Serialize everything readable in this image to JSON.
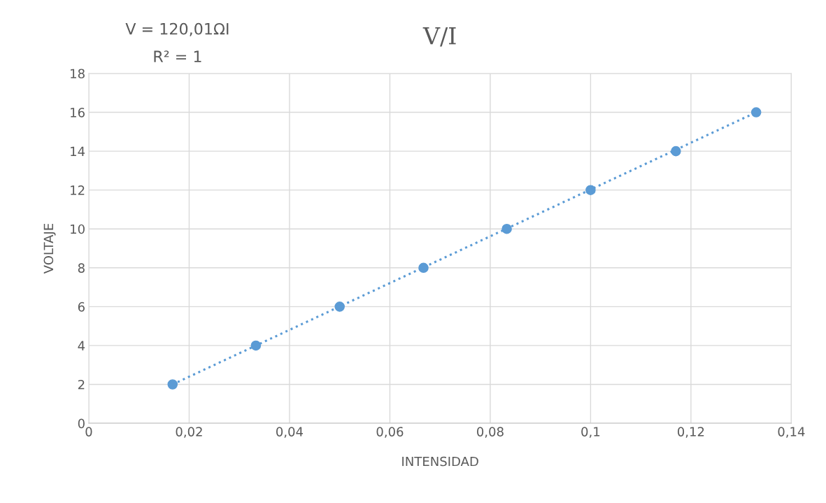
{
  "chart_data": {
    "type": "scatter",
    "title": "V/I",
    "xlabel": "INTENSIDAD",
    "ylabel": "VOLTAJE",
    "annotations": [
      "V = 120,01ΩI",
      "R² = 1"
    ],
    "series": [
      {
        "type": "scatter",
        "color": "#5b9bd5",
        "marker": "circle",
        "x": [
          0.0167,
          0.0333,
          0.05,
          0.0667,
          0.0833,
          0.1,
          0.117,
          0.133
        ],
        "values": [
          2,
          4,
          6,
          8,
          10,
          12,
          14,
          16
        ]
      },
      {
        "type": "line",
        "color": "#5b9bd5",
        "line_style": "dotted",
        "marker": "none",
        "x": [
          0.0167,
          0.133
        ],
        "values": [
          2,
          16
        ]
      }
    ],
    "xlim": [
      0,
      0.14
    ],
    "xticks": [
      0,
      {
        "value": 0.02,
        "label": "0,02"
      },
      {
        "value": 0.04,
        "label": "0,04"
      },
      {
        "value": 0.06,
        "label": "0,06"
      },
      {
        "value": 0.08,
        "label": "0,08"
      },
      {
        "value": 0.1,
        "label": "0,1"
      },
      {
        "value": 0.12,
        "label": "0,12"
      },
      {
        "value": 0.14,
        "label": "0,14"
      }
    ],
    "ylim": [
      0,
      18
    ],
    "yticks": [
      0,
      2,
      4,
      6,
      8,
      10,
      12,
      14,
      16,
      18
    ],
    "grid": true,
    "legend": false
  }
}
